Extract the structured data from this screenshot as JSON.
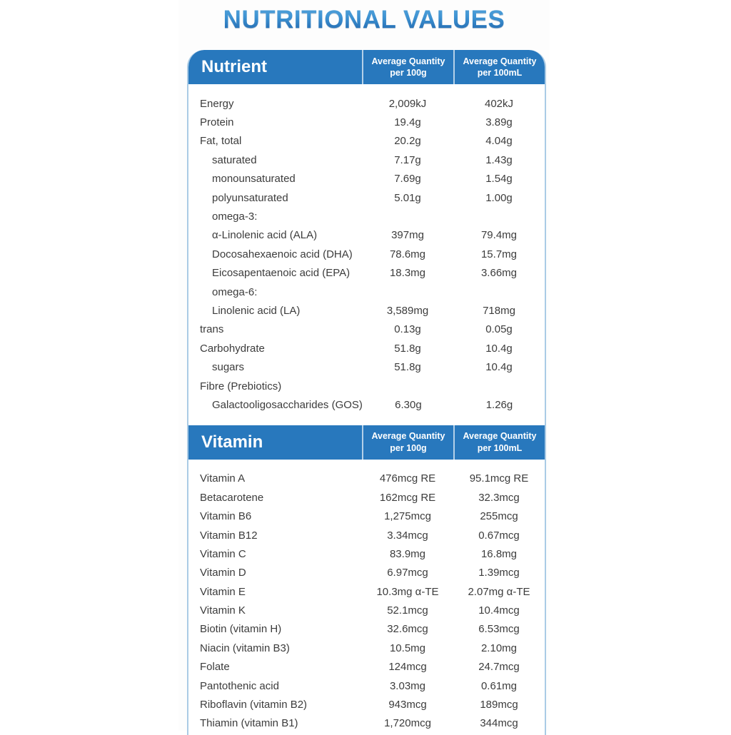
{
  "page": {
    "title": "NUTRITIONAL VALUES"
  },
  "colors": {
    "header_blue": "#2878bd",
    "border_blue": "#aacbe5",
    "title_gradient_top": "#55a4da",
    "title_gradient_bottom": "#1d61a8",
    "body_text": "#3c3c3c"
  },
  "sections": [
    {
      "id": "nutrient",
      "label": "Nutrient",
      "columns": [
        "Average Quantity\nper 100g",
        "Average Quantity\nper 100mL"
      ],
      "rows": [
        {
          "label": "Energy",
          "indent": 0,
          "per100g": "2,009kJ",
          "per100ml": "402kJ"
        },
        {
          "label": "Protein",
          "indent": 0,
          "per100g": "19.4g",
          "per100ml": "3.89g"
        },
        {
          "label": "Fat, total",
          "indent": 0,
          "per100g": "20.2g",
          "per100ml": "4.04g"
        },
        {
          "label": "saturated",
          "indent": 1,
          "per100g": "7.17g",
          "per100ml": "1.43g"
        },
        {
          "label": "monounsaturated",
          "indent": 1,
          "per100g": "7.69g",
          "per100ml": "1.54g"
        },
        {
          "label": "polyunsaturated",
          "indent": 1,
          "per100g": "5.01g",
          "per100ml": "1.00g"
        },
        {
          "label": "omega-3:",
          "indent": 1,
          "per100g": "",
          "per100ml": ""
        },
        {
          "label": "α-Linolenic acid (ALA)",
          "indent": 1,
          "per100g": "397mg",
          "per100ml": "79.4mg"
        },
        {
          "label": "Docosahexaenoic acid (DHA)",
          "indent": 1,
          "per100g": "78.6mg",
          "per100ml": "15.7mg"
        },
        {
          "label": "Eicosapentaenoic acid (EPA)",
          "indent": 1,
          "per100g": "18.3mg",
          "per100ml": "3.66mg"
        },
        {
          "label": "omega-6:",
          "indent": 1,
          "per100g": "",
          "per100ml": ""
        },
        {
          "label": "Linolenic acid (LA)",
          "indent": 1,
          "per100g": "3,589mg",
          "per100ml": "718mg"
        },
        {
          "label": "trans",
          "indent": 0,
          "per100g": "0.13g",
          "per100ml": "0.05g"
        },
        {
          "label": "Carbohydrate",
          "indent": 0,
          "per100g": "51.8g",
          "per100ml": "10.4g"
        },
        {
          "label": "sugars",
          "indent": 1,
          "per100g": "51.8g",
          "per100ml": "10.4g"
        },
        {
          "label": "Fibre (Prebiotics)",
          "indent": 0,
          "per100g": "",
          "per100ml": ""
        },
        {
          "label": "Galactooligosaccharides (GOS)",
          "indent": 1,
          "per100g": "6.30g",
          "per100ml": "1.26g"
        }
      ]
    },
    {
      "id": "vitamin",
      "label": "Vitamin",
      "columns": [
        "Average Quantity\nper 100g",
        "Average Quantity\nper 100mL"
      ],
      "rows": [
        {
          "label": "Vitamin A",
          "indent": 0,
          "per100g": "476mcg RE",
          "per100ml": "95.1mcg RE"
        },
        {
          "label": "Betacarotene",
          "indent": 0,
          "per100g": "162mcg RE",
          "per100ml": "32.3mcg"
        },
        {
          "label": "Vitamin B6",
          "indent": 0,
          "per100g": "1,275mcg",
          "per100ml": "255mcg"
        },
        {
          "label": "Vitamin B12",
          "indent": 0,
          "per100g": "3.34mcg",
          "per100ml": "0.67mcg"
        },
        {
          "label": "Vitamin C",
          "indent": 0,
          "per100g": "83.9mg",
          "per100ml": "16.8mg"
        },
        {
          "label": "Vitamin D",
          "indent": 0,
          "per100g": "6.97mcg",
          "per100ml": "1.39mcg"
        },
        {
          "label": "Vitamin E",
          "indent": 0,
          "per100g": "10.3mg α-TE",
          "per100ml": "2.07mg α-TE"
        },
        {
          "label": "Vitamin K",
          "indent": 0,
          "per100g": "52.1mcg",
          "per100ml": "10.4mcg"
        },
        {
          "label": "Biotin (vitamin H)",
          "indent": 0,
          "per100g": "32.6mcg",
          "per100ml": "6.53mcg"
        },
        {
          "label": "Niacin (vitamin B3)",
          "indent": 0,
          "per100g": "10.5mg",
          "per100ml": "2.10mg"
        },
        {
          "label": "Folate",
          "indent": 0,
          "per100g": "124mcg",
          "per100ml": "24.7mcg"
        },
        {
          "label": "Pantothenic acid",
          "indent": 0,
          "per100g": "3.03mg",
          "per100ml": "0.61mg"
        },
        {
          "label": "Riboflavin (vitamin B2)",
          "indent": 0,
          "per100g": "943mcg",
          "per100ml": "189mcg"
        },
        {
          "label": "Thiamin (vitamin B1)",
          "indent": 0,
          "per100g": "1,720mcg",
          "per100ml": "344mcg"
        }
      ]
    }
  ]
}
